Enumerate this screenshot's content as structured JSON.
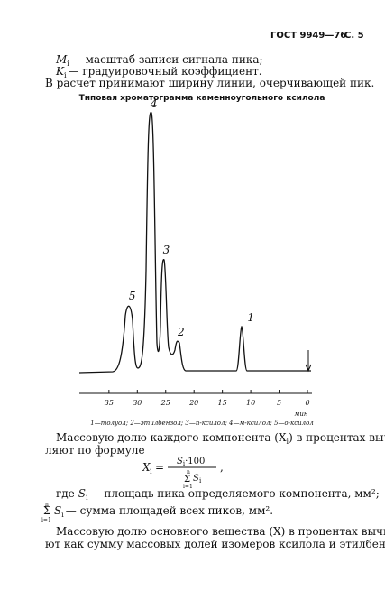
{
  "header": {
    "standard": "ГОСТ 9949—76",
    "page": "С. 5"
  },
  "definitions": [
    {
      "symbol": "M",
      "sub": "i",
      "text": "— масштаб записи сигнала пика;"
    },
    {
      "symbol": "K",
      "sub": "i",
      "text": "— градуировочный коэффициент."
    }
  ],
  "paragraph_1": "В расчет принимают ширину линии, очерчивающей пик.",
  "figure": {
    "title": "Типовая хроматограмма каменноугольного ксилола",
    "peaks": [
      {
        "label": "1",
        "time": 10.3
      },
      {
        "label": "2",
        "time": 22.6
      },
      {
        "label": "3",
        "time": 25.2
      },
      {
        "label": "4",
        "time": 27.4
      },
      {
        "label": "5",
        "time": 31.2
      }
    ],
    "axis_ticks": [
      35,
      30,
      25,
      20,
      15,
      10,
      5,
      0
    ],
    "axis_unit": "мин",
    "caption": "1—толуол; 2—этилбензол; 3—п-ксилол; 4—м-ксилол; 5—о-ксилол"
  },
  "paragraph_2": [
    "Массовую долю каждого компонента (X",
    "i",
    ") в процентах вычис-",
    "ляют по формуле"
  ],
  "formula": {
    "lhs": "X",
    "lhs_sub": "i",
    "eq": "=",
    "numerator": "S",
    "num_sub": "i",
    "num_rest": "·100",
    "sum": "Σ",
    "sum_top": "n",
    "sum_bottom": "i=1",
    "den": "S",
    "den_sub": "i",
    "tail": ","
  },
  "where": [
    {
      "lead": "где",
      "symbol": "S",
      "sub": "i",
      "text": "— площадь пика определяемого компонента, мм²;"
    },
    {
      "sum": "Σ",
      "top": "n",
      "bottom": "i=1",
      "symbol": "S",
      "sub": "i",
      "text": "— сумма площадей всех пиков, мм²."
    }
  ],
  "paragraph_3": [
    "Массовую долю основного вещества (X) в процентах вычисля-",
    "ют как сумму массовых долей изомеров ксилола и этилбензола."
  ]
}
